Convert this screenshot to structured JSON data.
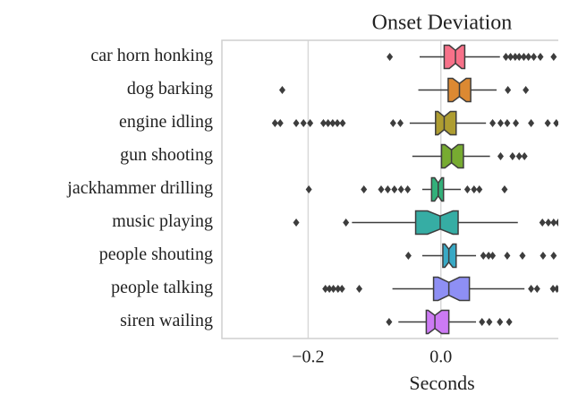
{
  "chart_data": {
    "type": "boxplot",
    "orientation": "horizontal",
    "notched": true,
    "title": "Onset Deviation",
    "xlabel": "Seconds",
    "xlim": [
      -0.33,
      0.177
    ],
    "xticks": [
      {
        "value": -0.2,
        "label": "−0.2"
      },
      {
        "value": 0,
        "label": "0.0"
      }
    ],
    "grid": true,
    "categories": [
      "car horn honking",
      "dog barking",
      "engine idling",
      "gun shooting",
      "jackhammer drilling",
      "music playing",
      "people shouting",
      "people talking",
      "siren wailing"
    ],
    "colors": [
      "#f77189",
      "#dc8932",
      "#ae9d31",
      "#77ab31",
      "#33b07a",
      "#36ada4",
      "#38a9c5",
      "#8e8ff4",
      "#cc7af4"
    ],
    "boxes": [
      {
        "whislo": -0.032,
        "q1": 0.005,
        "median": 0.022,
        "q3": 0.036,
        "whishi": 0.089,
        "fliers": [
          -0.077,
          0.098,
          0.105,
          0.112,
          0.118,
          0.125,
          0.132,
          0.14,
          0.15,
          0.17
        ]
      },
      {
        "whislo": -0.034,
        "q1": 0.011,
        "median": 0.028,
        "q3": 0.045,
        "whishi": 0.084,
        "fliers": [
          -0.239,
          0.101,
          0.128
        ]
      },
      {
        "whislo": -0.047,
        "q1": -0.008,
        "median": 0.005,
        "q3": 0.023,
        "whishi": 0.068,
        "fliers": [
          -0.25,
          -0.242,
          -0.218,
          -0.207,
          -0.197,
          -0.177,
          -0.17,
          -0.163,
          -0.156,
          -0.148,
          -0.072,
          -0.061,
          0.078,
          0.09,
          0.1,
          0.113,
          0.136,
          0.161,
          0.174
        ]
      },
      {
        "whislo": -0.043,
        "q1": 0.001,
        "median": 0.016,
        "q3": 0.034,
        "whishi": 0.074,
        "fliers": [
          0.09,
          0.108,
          0.118,
          0.126
        ]
      },
      {
        "whislo": -0.028,
        "q1": -0.014,
        "median": -0.004,
        "q3": 0.004,
        "whishi": 0.03,
        "fliers": [
          -0.199,
          -0.116,
          -0.09,
          -0.08,
          -0.07,
          -0.06,
          -0.05,
          0.04,
          0.05,
          0.058,
          0.096
        ]
      },
      {
        "whislo": -0.134,
        "q1": -0.038,
        "median": -0.001,
        "q3": 0.026,
        "whishi": 0.116,
        "fliers": [
          -0.218,
          -0.143,
          0.153,
          0.162,
          0.17,
          0.177
        ]
      },
      {
        "whislo": -0.028,
        "q1": 0.003,
        "median": 0.012,
        "q3": 0.023,
        "whishi": 0.053,
        "fliers": [
          -0.049,
          0.064,
          0.072,
          0.078,
          0.1,
          0.123,
          0.154,
          0.17
        ]
      },
      {
        "whislo": -0.073,
        "q1": -0.011,
        "median": 0.012,
        "q3": 0.043,
        "whishi": 0.126,
        "fliers": [
          -0.174,
          -0.168,
          -0.162,
          -0.155,
          -0.149,
          -0.123,
          0.136,
          0.145,
          0.169,
          0.175
        ]
      },
      {
        "whislo": -0.064,
        "q1": -0.022,
        "median": -0.009,
        "q3": 0.012,
        "whishi": 0.053,
        "fliers": [
          -0.078,
          0.062,
          0.073,
          0.089,
          0.103
        ]
      }
    ]
  }
}
